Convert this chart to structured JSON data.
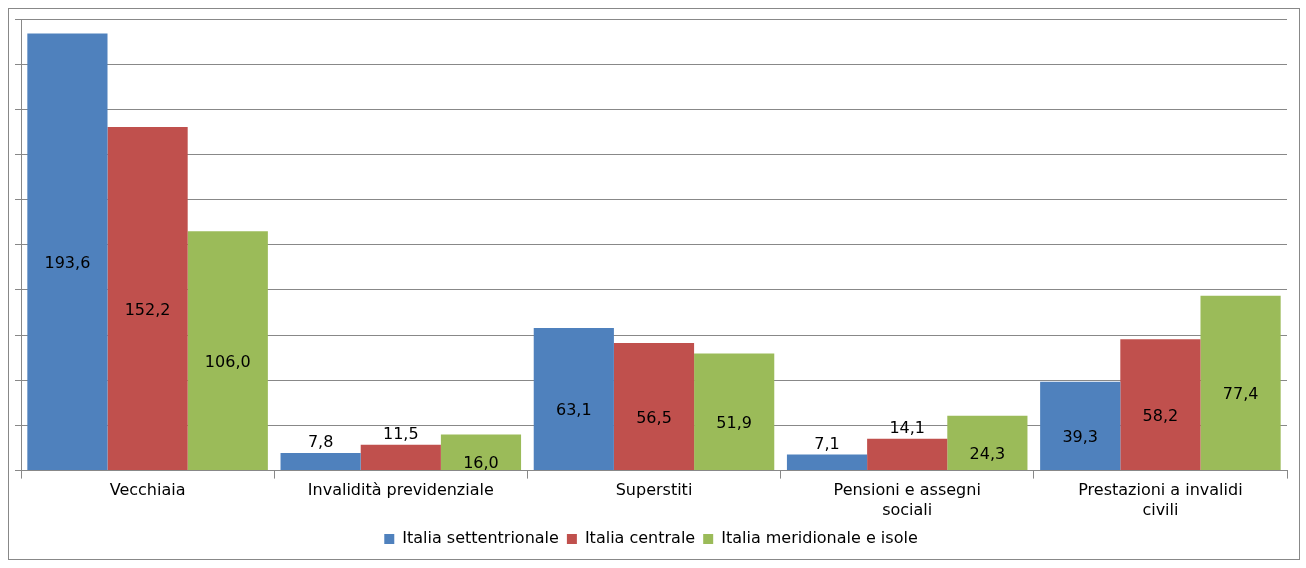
{
  "chart_data": {
    "type": "bar",
    "categories": [
      "Vecchiaia",
      "Invalidità previdenziale",
      "Superstiti",
      "Pensioni e assegni sociali",
      "Prestazioni a invalidi civili"
    ],
    "series": [
      {
        "name": "Italia settentrionale",
        "color": "#4f81bd",
        "values": [
          193.6,
          7.8,
          63.1,
          7.1,
          39.3
        ],
        "value_labels": [
          "193,6",
          "7,8",
          "63,1",
          "7,1",
          "39,3"
        ]
      },
      {
        "name": "Italia centrale",
        "color": "#c0504d",
        "values": [
          152.2,
          11.5,
          56.5,
          14.1,
          58.2
        ],
        "value_labels": [
          "152,2",
          "11,5",
          "56,5",
          "14,1",
          "58,2"
        ]
      },
      {
        "name": "Italia meridionale e isole",
        "color": "#9bbb59",
        "values": [
          106.0,
          16.0,
          51.9,
          24.3,
          77.4
        ],
        "value_labels": [
          "106,0",
          "16,0",
          "51,9",
          "24,3",
          "77,4"
        ]
      }
    ],
    "tick_labels": "x",
    "grid": "y",
    "legend": "bottom"
  }
}
